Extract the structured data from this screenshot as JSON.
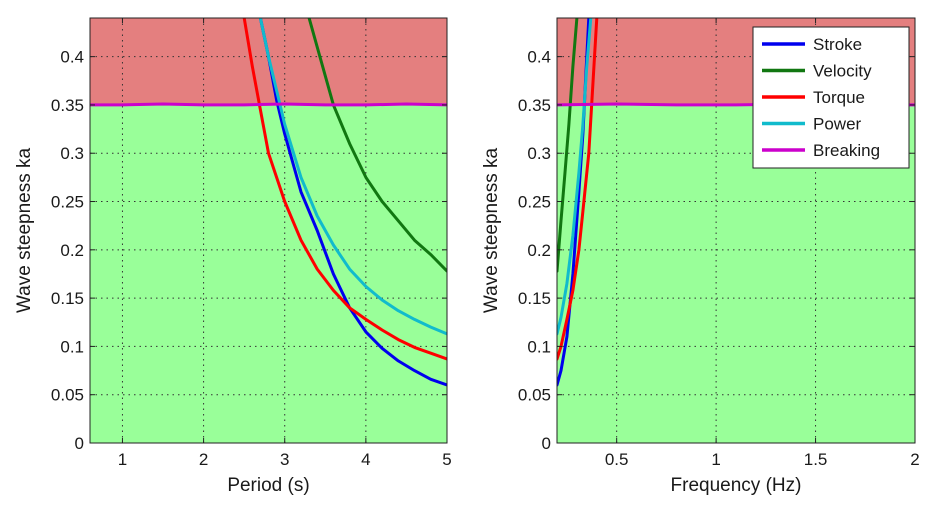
{
  "chart_data": [
    {
      "type": "line",
      "xlabel": "Period (s)",
      "ylabel": "Wave steepness ka",
      "xlim": [
        0.6,
        5
      ],
      "ylim": [
        0,
        0.44
      ],
      "xticks": [
        1,
        2,
        3,
        4,
        5
      ],
      "xtick_labels": [
        "1",
        "2",
        "3",
        "4",
        "5"
      ],
      "yticks": [
        0,
        0.05,
        0.1,
        0.15,
        0.2,
        0.25,
        0.3,
        0.35,
        0.4
      ],
      "ytick_labels": [
        "0",
        "0.05",
        "0.1",
        "0.15",
        "0.2",
        "0.25",
        "0.3",
        "0.35",
        "0.4"
      ],
      "grid": true,
      "shaded_regions": [
        {
          "from": 0,
          "to": 0.35,
          "color": "#99ff99"
        },
        {
          "from": 0.35,
          "to": 0.44,
          "color": "#e47f7f"
        }
      ],
      "series": [
        {
          "name": "Stroke",
          "color": "#0000ee",
          "x": [
            2.7,
            2.8,
            2.9,
            3.0,
            3.2,
            3.4,
            3.6,
            3.8,
            4.0,
            4.2,
            4.4,
            4.6,
            4.8,
            5.0
          ],
          "y": [
            0.44,
            0.4,
            0.355,
            0.32,
            0.26,
            0.22,
            0.175,
            0.14,
            0.115,
            0.098,
            0.085,
            0.075,
            0.066,
            0.06
          ]
        },
        {
          "name": "Velocity",
          "color": "#117711",
          "x": [
            3.3,
            3.4,
            3.6,
            3.8,
            4.0,
            4.2,
            4.4,
            4.6,
            4.8,
            5.0
          ],
          "y": [
            0.44,
            0.41,
            0.35,
            0.31,
            0.275,
            0.25,
            0.23,
            0.21,
            0.195,
            0.178
          ]
        },
        {
          "name": "Torque",
          "color": "#ff0000",
          "x": [
            2.5,
            2.6,
            2.7,
            2.8,
            3.0,
            3.2,
            3.4,
            3.6,
            3.8,
            4.0,
            4.2,
            4.4,
            4.6,
            4.8,
            5.0
          ],
          "y": [
            0.44,
            0.39,
            0.345,
            0.3,
            0.25,
            0.21,
            0.18,
            0.158,
            0.14,
            0.128,
            0.117,
            0.107,
            0.099,
            0.093,
            0.087
          ]
        },
        {
          "name": "Power",
          "color": "#11bbcc",
          "x": [
            2.7,
            2.8,
            3.0,
            3.2,
            3.4,
            3.6,
            3.8,
            4.0,
            4.2,
            4.4,
            4.6,
            4.8,
            5.0
          ],
          "y": [
            0.44,
            0.4,
            0.33,
            0.275,
            0.235,
            0.205,
            0.18,
            0.162,
            0.148,
            0.137,
            0.128,
            0.12,
            0.113
          ]
        },
        {
          "name": "Breaking",
          "color": "#cc00cc",
          "x": [
            0.6,
            1.0,
            1.5,
            2.0,
            2.5,
            3.0,
            3.5,
            4.0,
            4.5,
            5.0
          ],
          "y": [
            0.35,
            0.35,
            0.351,
            0.35,
            0.35,
            0.351,
            0.35,
            0.35,
            0.351,
            0.35
          ]
        }
      ]
    },
    {
      "type": "line",
      "xlabel": "Frequency (Hz)",
      "ylabel": "Wave steepness ka",
      "xlim": [
        0.2,
        2
      ],
      "ylim": [
        0,
        0.44
      ],
      "xticks": [
        0.5,
        1,
        1.5,
        2
      ],
      "xtick_labels": [
        "0.5",
        "1",
        "1.5",
        "2"
      ],
      "yticks": [
        0,
        0.05,
        0.1,
        0.15,
        0.2,
        0.25,
        0.3,
        0.35,
        0.4
      ],
      "ytick_labels": [
        "0",
        "0.05",
        "0.1",
        "0.15",
        "0.2",
        "0.25",
        "0.3",
        "0.35",
        "0.4"
      ],
      "grid": true,
      "legend_position": "top-right",
      "shaded_regions": [
        {
          "from": 0,
          "to": 0.35,
          "color": "#99ff99"
        },
        {
          "from": 0.35,
          "to": 0.44,
          "color": "#e47f7f"
        }
      ],
      "series": [
        {
          "name": "Stroke",
          "color": "#0000ee",
          "x": [
            0.2,
            0.22,
            0.25,
            0.28,
            0.31,
            0.33,
            0.345,
            0.36
          ],
          "y": [
            0.06,
            0.075,
            0.11,
            0.175,
            0.26,
            0.32,
            0.38,
            0.44
          ]
        },
        {
          "name": "Velocity",
          "color": "#117711",
          "x": [
            0.2,
            0.22,
            0.24,
            0.26,
            0.28,
            0.3
          ],
          "y": [
            0.178,
            0.23,
            0.28,
            0.33,
            0.39,
            0.44
          ]
        },
        {
          "name": "Torque",
          "color": "#ff0000",
          "x": [
            0.2,
            0.22,
            0.25,
            0.28,
            0.31,
            0.33,
            0.36,
            0.38,
            0.4
          ],
          "y": [
            0.087,
            0.1,
            0.128,
            0.158,
            0.2,
            0.24,
            0.3,
            0.37,
            0.44
          ]
        },
        {
          "name": "Power",
          "color": "#11bbcc",
          "x": [
            0.2,
            0.22,
            0.25,
            0.28,
            0.31,
            0.33,
            0.35,
            0.37
          ],
          "y": [
            0.113,
            0.13,
            0.165,
            0.215,
            0.28,
            0.33,
            0.39,
            0.44
          ]
        },
        {
          "name": "Breaking",
          "color": "#cc00cc",
          "x": [
            0.2,
            0.5,
            0.8,
            1.1,
            1.4,
            1.7,
            2.0
          ],
          "y": [
            0.35,
            0.351,
            0.35,
            0.35,
            0.351,
            0.35,
            0.35
          ]
        }
      ]
    }
  ]
}
